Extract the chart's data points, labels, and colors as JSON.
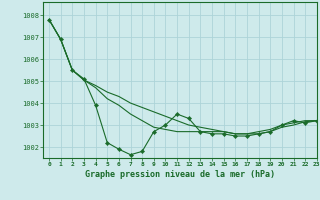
{
  "title": "Graphe pression niveau de la mer (hPa)",
  "bg_color": "#ceeaeb",
  "grid_color": "#add4d8",
  "line_color": "#1a6b2a",
  "xlim": [
    -0.5,
    23
  ],
  "ylim": [
    1001.5,
    1008.6
  ],
  "yticks": [
    1002,
    1003,
    1004,
    1005,
    1006,
    1007,
    1008
  ],
  "xticks": [
    0,
    1,
    2,
    3,
    4,
    5,
    6,
    7,
    8,
    9,
    10,
    11,
    12,
    13,
    14,
    15,
    16,
    17,
    18,
    19,
    20,
    21,
    22,
    23
  ],
  "series1": [
    1007.8,
    1006.9,
    1005.5,
    1005.1,
    1003.9,
    1002.2,
    1001.9,
    1001.65,
    1001.8,
    1002.7,
    1003.0,
    1003.5,
    1003.3,
    1002.7,
    1002.6,
    1002.6,
    1002.5,
    1002.5,
    1002.6,
    1002.7,
    1003.0,
    1003.2,
    1003.1,
    1003.2
  ],
  "series2": [
    1007.8,
    1006.9,
    1005.5,
    1005.05,
    1004.8,
    1004.5,
    1004.3,
    1004.0,
    1003.8,
    1003.6,
    1003.4,
    1003.2,
    1003.0,
    1002.9,
    1002.8,
    1002.7,
    1002.6,
    1002.6,
    1002.6,
    1002.7,
    1002.9,
    1003.0,
    1003.15,
    1003.2
  ],
  "series3": [
    1007.8,
    1006.9,
    1005.5,
    1005.05,
    1004.7,
    1004.2,
    1003.9,
    1003.5,
    1003.2,
    1002.9,
    1002.8,
    1002.7,
    1002.7,
    1002.7,
    1002.7,
    1002.7,
    1002.6,
    1002.6,
    1002.7,
    1002.8,
    1003.0,
    1003.1,
    1003.2,
    1003.2
  ]
}
